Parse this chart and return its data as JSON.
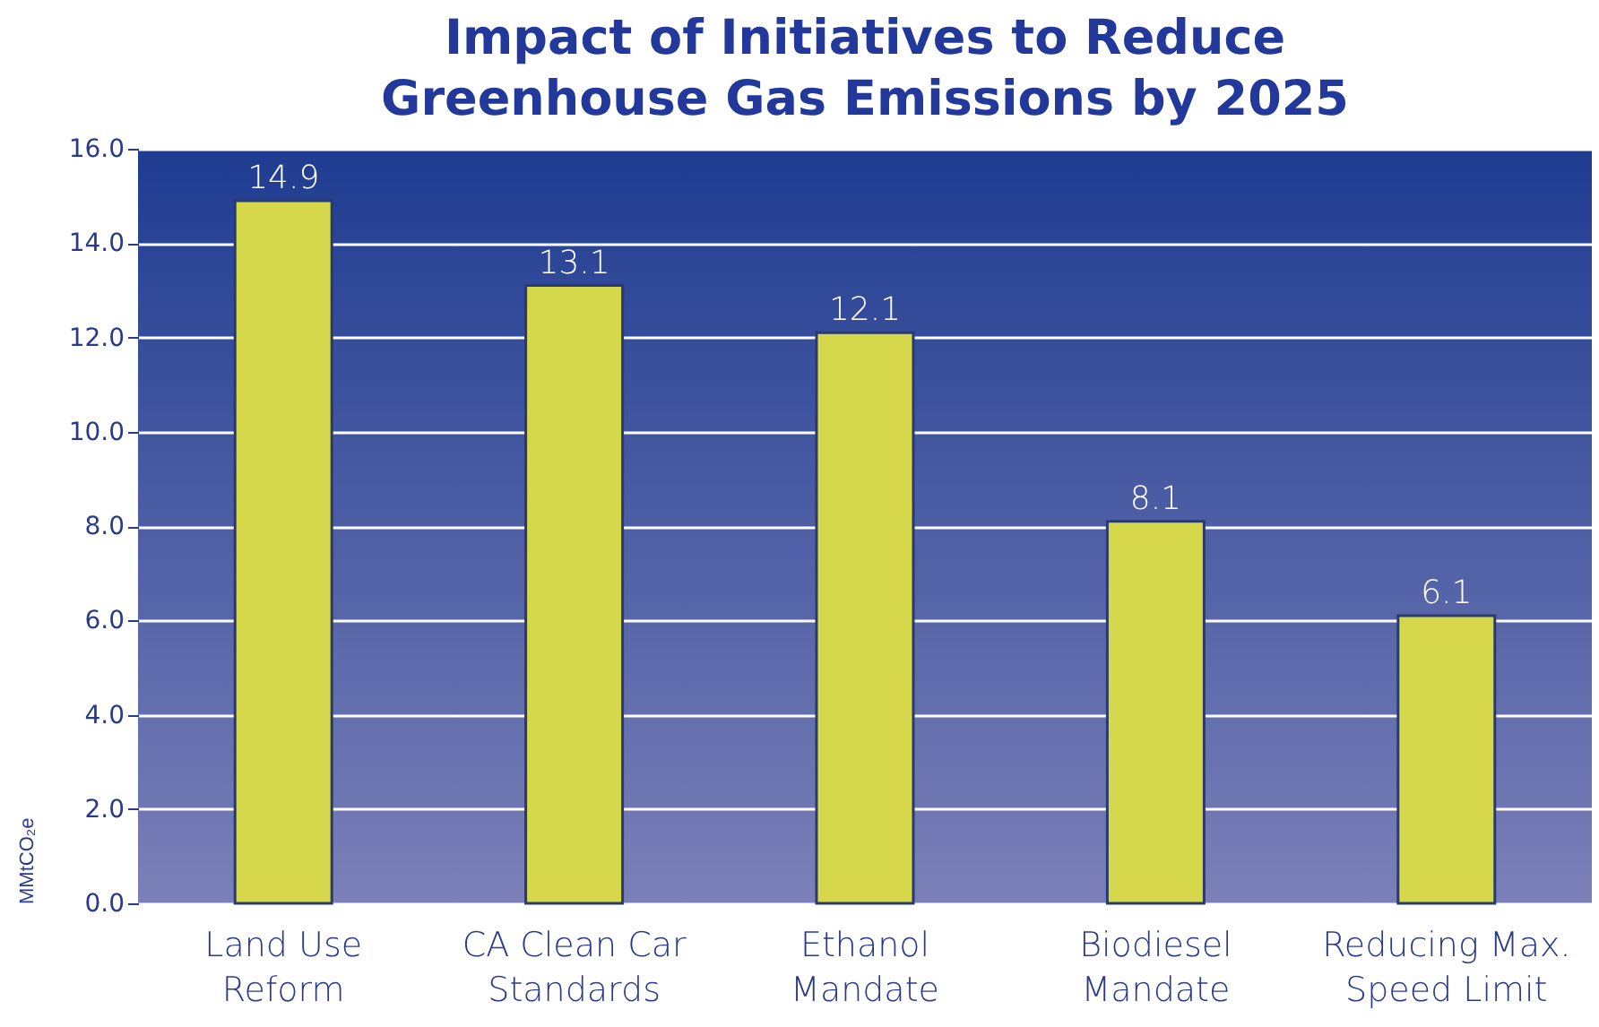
{
  "chart_data": {
    "type": "bar",
    "title": "Impact of Initiatives to Reduce Greenhouse Gas Emissions by 2025",
    "ylabel": "MMtCO₂e",
    "categories": [
      "Land Use Reform",
      "CA Clean Car Standards",
      "Ethanol Mandate",
      "Biodiesel Mandate",
      "Reducing Max. Speed Limit"
    ],
    "values": [
      14.9,
      13.1,
      12.1,
      8.1,
      6.1
    ],
    "color": "#d6d84c",
    "ylim": [
      0,
      16
    ],
    "yticks": [
      {
        "value": 0,
        "label": "0.0"
      },
      {
        "value": 2,
        "label": "2.0"
      },
      {
        "value": 4,
        "label": "4.0"
      },
      {
        "value": 6,
        "label": "6.0"
      },
      {
        "value": 8,
        "label": "8.0"
      },
      {
        "value": 10,
        "label": "10.0"
      },
      {
        "value": 12,
        "label": "12.0"
      },
      {
        "value": 14,
        "label": "14.0"
      },
      {
        "value": 16,
        "label": "16.0"
      }
    ],
    "grid": true,
    "data_labels": true
  }
}
